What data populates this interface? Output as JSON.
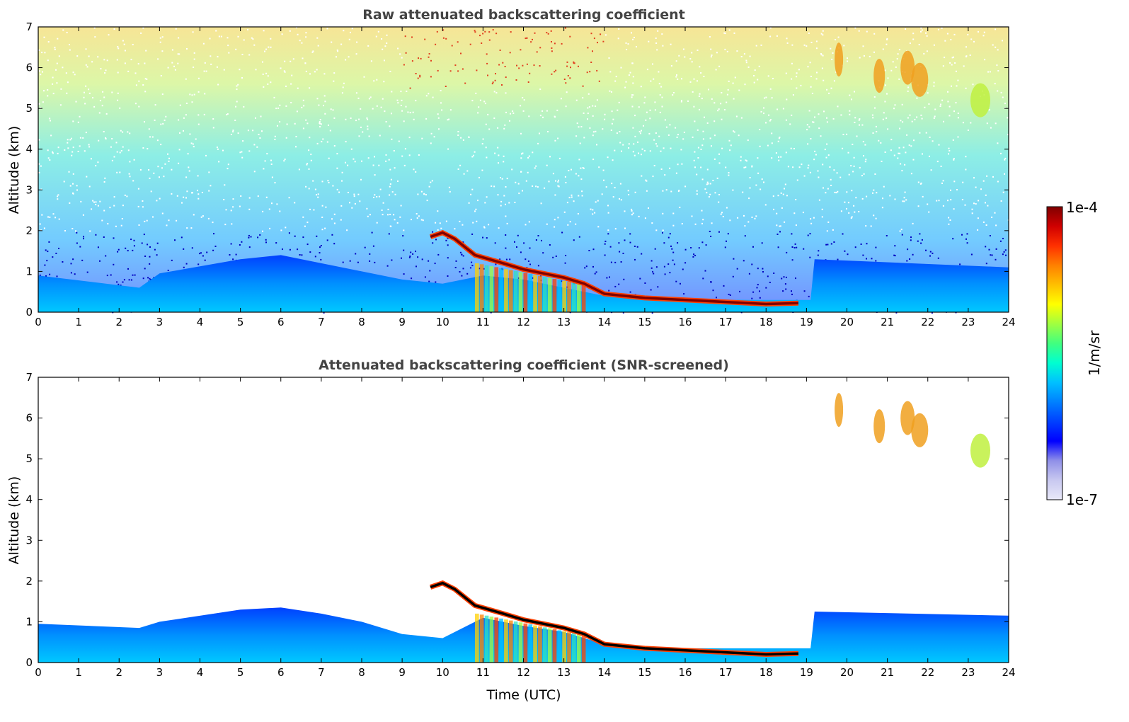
{
  "chart_data": [
    {
      "type": "heatmap",
      "title": "Raw attenuated backscattering coefficient",
      "xlabel": "",
      "ylabel": "Altitude (km)",
      "xlim": [
        0,
        24
      ],
      "ylim": [
        0,
        7
      ],
      "x_ticks": [
        "0",
        "1",
        "2",
        "3",
        "4",
        "5",
        "6",
        "7",
        "8",
        "9",
        "10",
        "11",
        "12",
        "13",
        "14",
        "15",
        "16",
        "17",
        "18",
        "19",
        "20",
        "21",
        "22",
        "23",
        "24"
      ],
      "y_ticks": [
        "0",
        "1",
        "2",
        "3",
        "4",
        "5",
        "6",
        "7"
      ],
      "noise_top": 7,
      "mixing_layer_height_km": [
        [
          0,
          0.9
        ],
        [
          2.5,
          0.6
        ],
        [
          3,
          0.95
        ],
        [
          5,
          1.3
        ],
        [
          6,
          1.4
        ],
        [
          8,
          1.0
        ],
        [
          9,
          0.8
        ],
        [
          10,
          0.7
        ],
        [
          11,
          0.9
        ],
        [
          12,
          0.8
        ],
        [
          13,
          0.6
        ],
        [
          14,
          0.4
        ],
        [
          16,
          0.3
        ],
        [
          19.1,
          0.3
        ],
        [
          19.2,
          1.3
        ],
        [
          24,
          1.1
        ]
      ],
      "cloud_base_km": [
        [
          9.7,
          1.85
        ],
        [
          10,
          1.95
        ],
        [
          10.3,
          1.8
        ],
        [
          10.8,
          1.4
        ],
        [
          11.5,
          1.2
        ],
        [
          12,
          1.05
        ],
        [
          12.5,
          0.95
        ],
        [
          13,
          0.85
        ],
        [
          13.5,
          0.7
        ],
        [
          14,
          0.45
        ],
        [
          14.5,
          0.4
        ],
        [
          15,
          0.35
        ],
        [
          16,
          0.3
        ],
        [
          17,
          0.25
        ],
        [
          18,
          0.2
        ],
        [
          18.8,
          0.22
        ]
      ],
      "cirrus_patches": [
        [
          19.8,
          6.2
        ],
        [
          20.8,
          5.8
        ],
        [
          21.5,
          6.0
        ],
        [
          21.8,
          5.7
        ],
        [
          23.3,
          5.2
        ]
      ]
    },
    {
      "type": "heatmap",
      "title": "Attenuated backscattering coefficient (SNR-screened)",
      "xlabel": "Time (UTC)",
      "ylabel": "Altitude (km)",
      "xlim": [
        0,
        24
      ],
      "ylim": [
        0,
        7
      ],
      "x_ticks": [
        "0",
        "1",
        "2",
        "3",
        "4",
        "5",
        "6",
        "7",
        "8",
        "9",
        "10",
        "11",
        "12",
        "13",
        "14",
        "15",
        "16",
        "17",
        "18",
        "19",
        "20",
        "21",
        "22",
        "23",
        "24"
      ],
      "y_ticks": [
        "0",
        "1",
        "2",
        "3",
        "4",
        "5",
        "6",
        "7"
      ],
      "noise_top": 0,
      "mixing_layer_height_km": [
        [
          0,
          0.95
        ],
        [
          2.5,
          0.85
        ],
        [
          3,
          1.0
        ],
        [
          5,
          1.3
        ],
        [
          6,
          1.35
        ],
        [
          7,
          1.2
        ],
        [
          8,
          1.0
        ],
        [
          9,
          0.7
        ],
        [
          10,
          0.6
        ],
        [
          11,
          1.1
        ],
        [
          12,
          0.9
        ],
        [
          13,
          0.75
        ],
        [
          14,
          0.45
        ],
        [
          16,
          0.35
        ],
        [
          19.1,
          0.35
        ],
        [
          19.2,
          1.25
        ],
        [
          24,
          1.15
        ]
      ],
      "cloud_base_km": [
        [
          9.7,
          1.85
        ],
        [
          10,
          1.95
        ],
        [
          10.3,
          1.8
        ],
        [
          10.8,
          1.4
        ],
        [
          11.5,
          1.2
        ],
        [
          12,
          1.05
        ],
        [
          12.5,
          0.95
        ],
        [
          13,
          0.85
        ],
        [
          13.5,
          0.7
        ],
        [
          14,
          0.45
        ],
        [
          14.5,
          0.4
        ],
        [
          15,
          0.35
        ],
        [
          16,
          0.3
        ],
        [
          17,
          0.25
        ],
        [
          18,
          0.2
        ],
        [
          18.8,
          0.22
        ]
      ],
      "cirrus_patches": [
        [
          19.8,
          6.2
        ],
        [
          20.8,
          5.8
        ],
        [
          21.5,
          6.0
        ],
        [
          21.8,
          5.7
        ],
        [
          23.3,
          5.2
        ]
      ]
    }
  ],
  "colorbar": {
    "top_label": "1e-4",
    "bottom_label": "1e-7",
    "unit_label": "1/m/sr",
    "colors": [
      "#e8e8f8",
      "#c8c8f0",
      "#9090e8",
      "#0000ff",
      "#0040ff",
      "#0080ff",
      "#00c0ff",
      "#00ffd0",
      "#40ff80",
      "#a0ff40",
      "#ffff00",
      "#ffc000",
      "#ff8000",
      "#ff3000",
      "#d00000",
      "#800000"
    ]
  }
}
